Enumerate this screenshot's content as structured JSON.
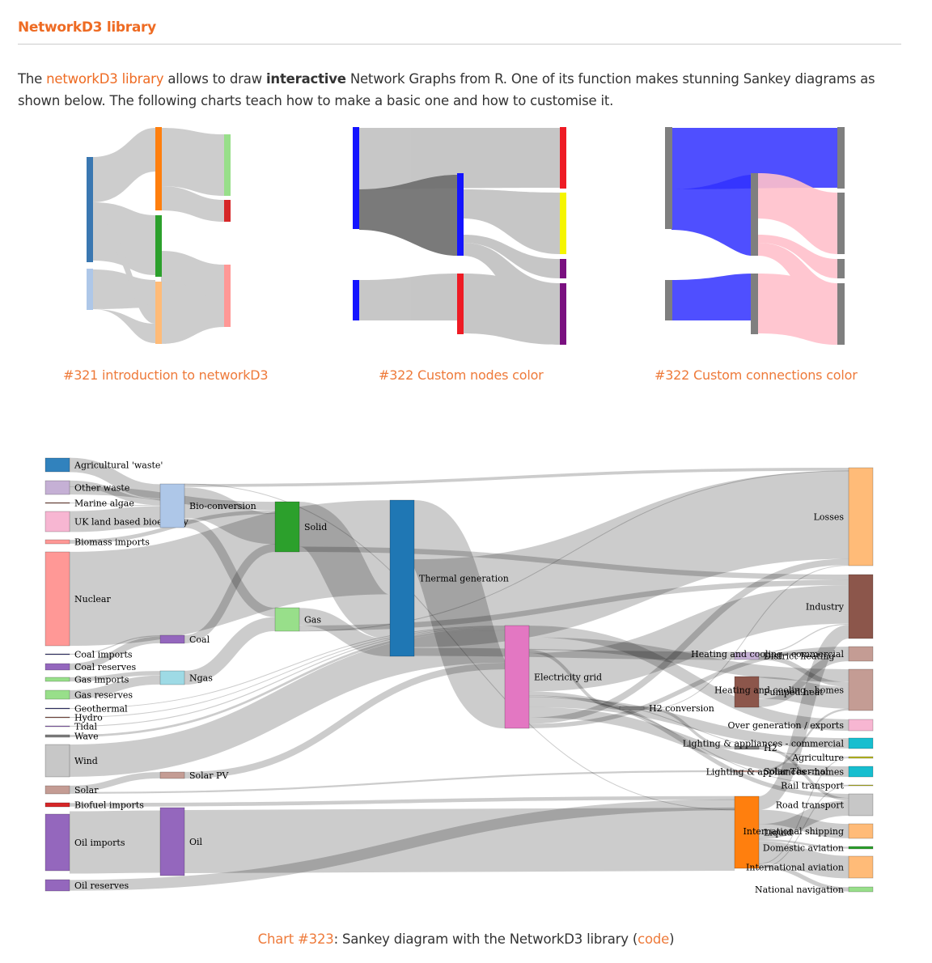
{
  "section": {
    "title": "NetworkD3 library"
  },
  "intro": {
    "prefix": "The ",
    "link": "networkD3 library",
    "middle1": " allows to draw ",
    "bold": "interactive",
    "middle2": " Network Graphs from R. One of its function makes stunning Sankey diagrams as shown below. The following charts teach how to make a basic one and how to customise it."
  },
  "thumbnails": [
    {
      "label": "#321 introduction to networkD3"
    },
    {
      "label": "#322 Custom nodes color"
    },
    {
      "label": "#322 Custom connections color"
    }
  ],
  "caption": {
    "link": "Chart #323",
    "text": ": Sankey diagram with the NetworkD3 library (",
    "code": "code",
    "end": ")"
  },
  "sankey": {
    "nodes": [
      {
        "name": "Agricultural 'waste'",
        "color": "#3182bd"
      },
      {
        "name": "Other waste",
        "color": "#c5b0d5"
      },
      {
        "name": "Marine algae",
        "color": "#8c564b"
      },
      {
        "name": "UK land based bioenergy",
        "color": "#f7b6d2"
      },
      {
        "name": "Biomass imports",
        "color": "#ff9896"
      },
      {
        "name": "Nuclear",
        "color": "#ff9896"
      },
      {
        "name": "Coal imports",
        "color": "#393b79"
      },
      {
        "name": "Coal reserves",
        "color": "#9467bd"
      },
      {
        "name": "Gas imports",
        "color": "#98df8a"
      },
      {
        "name": "Gas reserves",
        "color": "#98df8a"
      },
      {
        "name": "Geothermal",
        "color": "#393b79"
      },
      {
        "name": "Hydro",
        "color": "#8c564b"
      },
      {
        "name": "Tidal",
        "color": "#9467bd"
      },
      {
        "name": "Wave",
        "color": "#7f7f7f"
      },
      {
        "name": "Wind",
        "color": "#c7c7c7"
      },
      {
        "name": "Solar",
        "color": "#c49c94"
      },
      {
        "name": "Biofuel imports",
        "color": "#d62728"
      },
      {
        "name": "Oil imports",
        "color": "#9467bd"
      },
      {
        "name": "Oil reserves",
        "color": "#9467bd"
      },
      {
        "name": "Bio-conversion",
        "color": "#aec7e8"
      },
      {
        "name": "Coal",
        "color": "#9467bd"
      },
      {
        "name": "Ngas",
        "color": "#9edae5"
      },
      {
        "name": "Solar PV",
        "color": "#c49c94"
      },
      {
        "name": "Oil",
        "color": "#9467bd"
      },
      {
        "name": "Solid",
        "color": "#2ca02c"
      },
      {
        "name": "Gas",
        "color": "#98df8a"
      },
      {
        "name": "Thermal generation",
        "color": "#1f77b4"
      },
      {
        "name": "Electricity grid",
        "color": "#e377c2"
      },
      {
        "name": "H2 conversion",
        "color": "#7f7f7f"
      },
      {
        "name": "District heating",
        "color": "#c5b0d5"
      },
      {
        "name": "Pumped heat",
        "color": "#8c564b"
      },
      {
        "name": "H2",
        "color": "#7f7f7f"
      },
      {
        "name": "Solar Thermal",
        "color": "#c49c94"
      },
      {
        "name": "Liquid",
        "color": "#ff7f0e"
      },
      {
        "name": "Losses",
        "color": "#ffbb78"
      },
      {
        "name": "Industry",
        "color": "#8c564b"
      },
      {
        "name": "Heating and cooling - commercial",
        "color": "#c49c94"
      },
      {
        "name": "Heating and cooling - homes",
        "color": "#c49c94"
      },
      {
        "name": "Over generation / exports",
        "color": "#f7b6d2"
      },
      {
        "name": "Lighting & appliances - commercial",
        "color": "#17becf"
      },
      {
        "name": "Agriculture",
        "color": "#bcbd22"
      },
      {
        "name": "Lighting & appliances - homes",
        "color": "#17becf"
      },
      {
        "name": "Rail transport",
        "color": "#bcbd22"
      },
      {
        "name": "Road transport",
        "color": "#c7c7c7"
      },
      {
        "name": "International shipping",
        "color": "#ffbb78"
      },
      {
        "name": "Domestic aviation",
        "color": "#2ca02c"
      },
      {
        "name": "International aviation",
        "color": "#ffbb78"
      },
      {
        "name": "National navigation",
        "color": "#98df8a"
      }
    ],
    "links": [
      [
        "Agricultural 'waste'",
        "Bio-conversion",
        124.7
      ],
      [
        "Other waste",
        "Bio-conversion",
        56.6
      ],
      [
        "Other waste",
        "Solid",
        77.8
      ],
      [
        "Marine algae",
        "Bio-conversion",
        4.4
      ],
      [
        "UK land based bioenergy",
        "Bio-conversion",
        182
      ],
      [
        "Biomass imports",
        "Solid",
        35
      ],
      [
        "Nuclear",
        "Thermal generation",
        839.9
      ],
      [
        "Coal imports",
        "Coal",
        11.6
      ],
      [
        "Coal reserves",
        "Coal",
        63.97
      ],
      [
        "Gas imports",
        "Ngas",
        40.7
      ],
      [
        "Gas reserves",
        "Ngas",
        82.2
      ],
      [
        "Geothermal",
        "Electricity grid",
        7.0
      ],
      [
        "Hydro",
        "Electricity grid",
        6.9
      ],
      [
        "Tidal",
        "Electricity grid",
        9.5
      ],
      [
        "Wave",
        "Electricity grid",
        19.0
      ],
      [
        "Wind",
        "Electricity grid",
        289.4
      ],
      [
        "Solar",
        "Solar PV",
        59.9
      ],
      [
        "Solar",
        "Solar Thermal",
        19.3
      ],
      [
        "Biofuel imports",
        "Liquid",
        35
      ],
      [
        "Oil imports",
        "Oil",
        504.3
      ],
      [
        "Oil reserves",
        "Liquid",
        107.7
      ],
      [
        "Bio-conversion",
        "Liquid",
        0.6
      ],
      [
        "Bio-conversion",
        "Losses",
        26.9
      ],
      [
        "Bio-conversion",
        "Solid",
        280.3
      ],
      [
        "Bio-conversion",
        "Gas",
        81.1
      ],
      [
        "Coal",
        "Solid",
        75.6
      ],
      [
        "Ngas",
        "Gas",
        122.9
      ],
      [
        "Solar PV",
        "Electricity grid",
        59.9
      ],
      [
        "Oil",
        "Liquid",
        611.99
      ],
      [
        "Solid",
        "Thermal generation",
        400.1
      ],
      [
        "Solid",
        "Industry",
        46.5
      ],
      [
        "Gas",
        "Thermal generation",
        151.9
      ],
      [
        "Gas",
        "Industry",
        46.5
      ],
      [
        "Gas",
        "Losses",
        2.4
      ],
      [
        "Thermal generation",
        "Electricity grid",
        525.5
      ],
      [
        "Thermal generation",
        "Losses",
        787.1
      ],
      [
        "Thermal generation",
        "District heating",
        79.3
      ],
      [
        "Electricity grid",
        "Over generation / exports",
        104.5
      ],
      [
        "Electricity grid",
        "Heating and cooling - homes",
        113.7
      ],
      [
        "Electricity grid",
        "H2 conversion",
        27.1
      ],
      [
        "Electricity grid",
        "Industry",
        342.2
      ],
      [
        "Electricity grid",
        "Road transport",
        37.8
      ],
      [
        "Electricity grid",
        "Agriculture",
        4.4
      ],
      [
        "Electricity grid",
        "Rail transport",
        7.0
      ],
      [
        "Electricity grid",
        "Lighting & appliances - commercial",
        90.0
      ],
      [
        "Electricity grid",
        "Lighting & appliances - homes",
        93.5
      ],
      [
        "Electricity grid",
        "Losses",
        56.7
      ],
      [
        "Electricity grid",
        "Heating and cooling - commercial",
        40.0
      ],
      [
        "H2 conversion",
        "H2",
        20.9
      ],
      [
        "H2 conversion",
        "Losses",
        6.2
      ],
      [
        "District heating",
        "Industry",
        10.5
      ],
      [
        "District heating",
        "Heating and cooling - commercial",
        22.5
      ],
      [
        "District heating",
        "Heating and cooling - homes",
        46.2
      ],
      [
        "Pumped heat",
        "Heating and cooling - homes",
        193
      ],
      [
        "Pumped heat",
        "Heating and cooling - commercial",
        70.7
      ],
      [
        "H2",
        "Road transport",
        20.9
      ],
      [
        "Solar Thermal",
        "Heating and cooling - homes",
        19.3
      ],
      [
        "Liquid",
        "Industry",
        121.1
      ],
      [
        "Liquid",
        "International shipping",
        128.7
      ],
      [
        "Liquid",
        "Road transport",
        135.8
      ],
      [
        "Liquid",
        "Domestic aviation",
        14.5
      ],
      [
        "Liquid",
        "International aviation",
        206.3
      ],
      [
        "Liquid",
        "Agriculture",
        3.6
      ],
      [
        "Liquid",
        "National navigation",
        33.1
      ],
      [
        "Liquid",
        "Rail transport",
        4.2
      ]
    ]
  }
}
